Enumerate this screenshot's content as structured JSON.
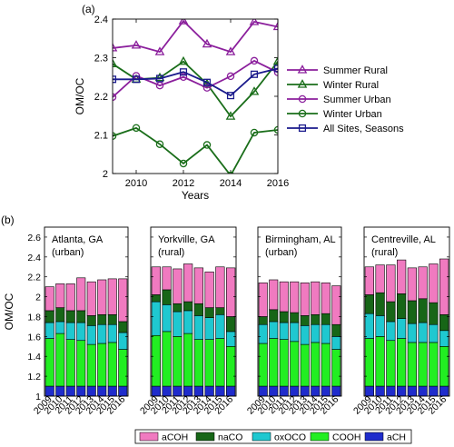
{
  "chart_data": [
    {
      "type": "line",
      "panel_label": "(a)",
      "xlabel": "Years",
      "ylabel": "OM/OC",
      "xlim": [
        2009,
        2016
      ],
      "ylim": [
        2.0,
        2.4
      ],
      "xticks": [
        2010,
        2012,
        2014,
        2016
      ],
      "yticks": [
        2.0,
        2.1,
        2.2,
        2.3,
        2.4
      ],
      "ytick_labels": [
        "2",
        "2.1",
        "2.2",
        "2.3",
        "2.4"
      ],
      "legend_position": "right",
      "x": [
        2009,
        2010,
        2011,
        2012,
        2013,
        2014,
        2015,
        2016
      ],
      "series": [
        {
          "name": "Summer Rural",
          "color": "#8b1f9c",
          "marker": "triangle",
          "values": [
            2.325,
            2.332,
            2.315,
            2.395,
            2.335,
            2.315,
            2.393,
            2.38
          ]
        },
        {
          "name": "Winter Rural",
          "color": "#1a6e1a",
          "marker": "triangle",
          "values": [
            2.284,
            2.244,
            2.248,
            2.29,
            2.232,
            2.148,
            2.212,
            2.29
          ]
        },
        {
          "name": "Summer Urban",
          "color": "#8b1f9c",
          "marker": "circle",
          "values": [
            2.198,
            2.253,
            2.228,
            2.25,
            2.222,
            2.252,
            2.292,
            2.262
          ]
        },
        {
          "name": "Winter Urban",
          "color": "#1a6e1a",
          "marker": "circle",
          "values": [
            2.097,
            2.118,
            2.076,
            2.026,
            2.074,
            1.995,
            2.106,
            2.113
          ]
        },
        {
          "name": "All Sites, Seasons",
          "color": "#1a1a8c",
          "marker": "square",
          "values": [
            2.244,
            2.244,
            2.246,
            2.263,
            2.236,
            2.202,
            2.257,
            2.272
          ]
        }
      ]
    },
    {
      "type": "bar",
      "stacked": true,
      "panel_label": "(b)",
      "ylabel": "OM/OC",
      "ylim": [
        1.0,
        2.7
      ],
      "yticks": [
        1.0,
        1.2,
        1.4,
        1.6,
        1.8,
        2.0,
        2.2,
        2.4,
        2.6
      ],
      "ytick_labels": [
        "1",
        "1.2",
        "1.4",
        "1.6",
        "1.8",
        "2",
        "2.2",
        "2.4",
        "2.6"
      ],
      "categories": [
        "2009",
        "2010",
        "2011",
        "2012",
        "2013",
        "2014",
        "2015",
        "2016"
      ],
      "legend": [
        {
          "name": "aCOH",
          "color": "#f07ac0"
        },
        {
          "name": "naCO",
          "color": "#176617"
        },
        {
          "name": "oxOCO",
          "color": "#1fc8d0"
        },
        {
          "name": "COOH",
          "color": "#22ee22"
        },
        {
          "name": "aCH",
          "color": "#1f2ccc"
        }
      ],
      "legend_position": "bottom",
      "sites": [
        {
          "title": "Atlanta, GA",
          "subtitle": "(urban)",
          "totals": {
            "aCH": [
              1.1,
              1.1,
              1.1,
              1.1,
              1.1,
              1.1,
              1.1,
              1.1
            ],
            "COOH": [
              1.58,
              1.63,
              1.57,
              1.56,
              1.52,
              1.53,
              1.54,
              1.47
            ],
            "oxOCO": [
              1.74,
              1.75,
              1.74,
              1.74,
              1.71,
              1.72,
              1.72,
              1.64
            ],
            "naCO": [
              1.86,
              1.89,
              1.86,
              1.86,
              1.81,
              1.82,
              1.82,
              1.75
            ],
            "aCOH": [
              2.1,
              2.13,
              2.13,
              2.19,
              2.15,
              2.17,
              2.18,
              2.18
            ]
          }
        },
        {
          "title": "Yorkville, GA",
          "subtitle": "(rural)",
          "totals": {
            "aCH": [
              1.1,
              1.1,
              1.1,
              1.1,
              1.1,
              1.1,
              1.1,
              1.1
            ],
            "COOH": [
              1.61,
              1.65,
              1.6,
              1.63,
              1.57,
              1.57,
              1.58,
              1.5
            ],
            "oxOCO": [
              1.95,
              1.92,
              1.85,
              1.86,
              1.81,
              1.79,
              1.82,
              1.65
            ],
            "naCO": [
              2.02,
              2.07,
              1.93,
              1.95,
              1.93,
              1.89,
              1.89,
              1.8
            ],
            "aCOH": [
              2.3,
              2.3,
              2.28,
              2.33,
              2.29,
              2.25,
              2.3,
              2.29
            ]
          }
        },
        {
          "title": "Birmingham, AL",
          "subtitle": "(urban)",
          "totals": {
            "aCH": [
              1.1,
              1.1,
              1.1,
              1.1,
              1.1,
              1.1,
              1.1,
              1.1
            ],
            "COOH": [
              1.53,
              1.58,
              1.57,
              1.55,
              1.52,
              1.54,
              1.53,
              1.47
            ],
            "oxOCO": [
              1.72,
              1.75,
              1.74,
              1.74,
              1.71,
              1.72,
              1.72,
              1.6
            ],
            "naCO": [
              1.8,
              1.87,
              1.85,
              1.84,
              1.81,
              1.82,
              1.83,
              1.72
            ],
            "aCOH": [
              2.14,
              2.17,
              2.15,
              2.15,
              2.14,
              2.15,
              2.14,
              2.11
            ]
          }
        },
        {
          "title": "Centreville, AL",
          "subtitle": "(rural)",
          "totals": {
            "aCH": [
              1.1,
              1.1,
              1.1,
              1.1,
              1.1,
              1.1,
              1.1,
              1.1
            ],
            "COOH": [
              1.58,
              1.6,
              1.56,
              1.58,
              1.54,
              1.54,
              1.54,
              1.5
            ],
            "oxOCO": [
              1.83,
              1.81,
              1.75,
              1.78,
              1.73,
              1.74,
              1.72,
              1.66
            ],
            "naCO": [
              2.02,
              2.04,
              1.95,
              2.03,
              1.96,
              1.98,
              1.94,
              1.82
            ],
            "aCOH": [
              2.3,
              2.32,
              2.32,
              2.37,
              2.29,
              2.3,
              2.33,
              2.38
            ]
          }
        }
      ]
    }
  ]
}
